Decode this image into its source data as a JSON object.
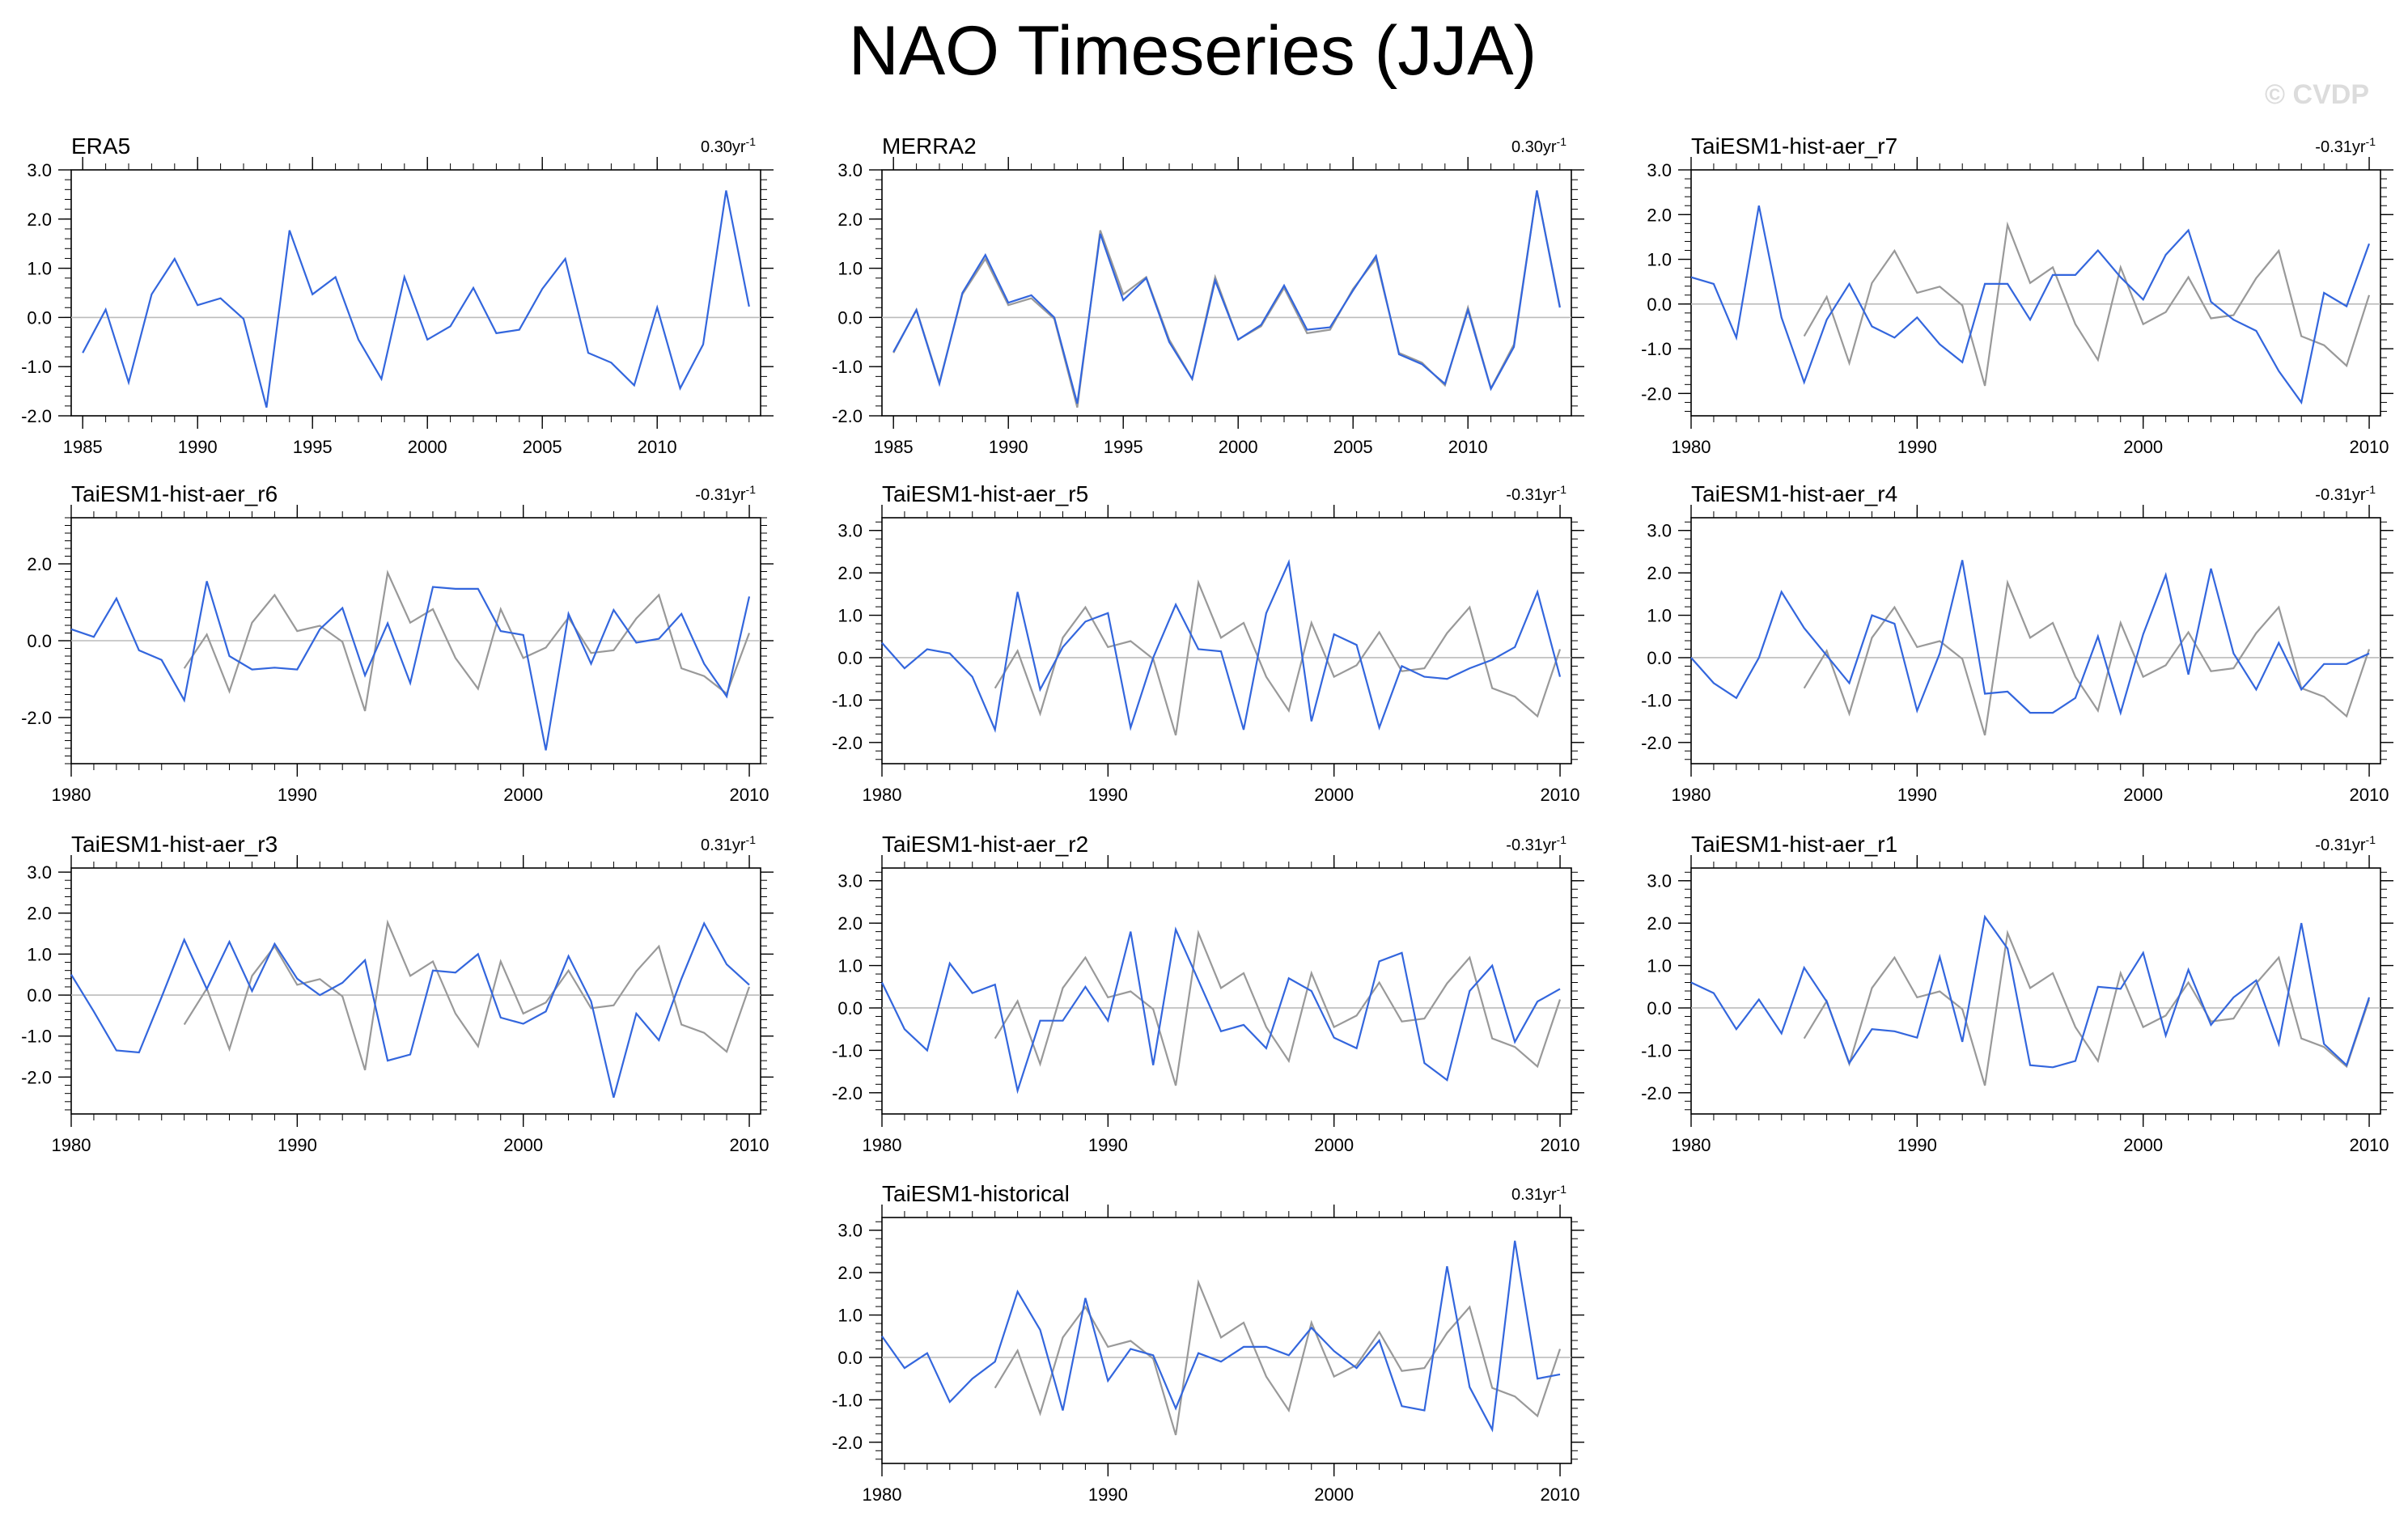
{
  "figure_title": "NAO Timeseries (JJA)",
  "watermark": "© CVDP",
  "obs_color": "#999999",
  "model_color": "#3366dd",
  "zero_line_color": "#bbbbbb",
  "chart_data": [
    {
      "type": "line",
      "title": "ERA5",
      "trend_label": "0.30yr",
      "xlim": [
        1984.5,
        2014.5
      ],
      "ylim": [
        -2.0,
        3.0
      ],
      "xticks": [
        1985,
        1990,
        1995,
        2000,
        2005,
        2010
      ],
      "yticks": [
        -2.0,
        -1.0,
        0.0,
        1.0,
        2.0,
        3.0
      ],
      "series": [
        {
          "name": "ERA5",
          "color_key": "model",
          "start": 1985,
          "values": [
            -0.72,
            0.16,
            -1.32,
            0.47,
            1.19,
            0.25,
            0.39,
            -0.03,
            -1.83,
            1.77,
            0.47,
            0.82,
            -0.45,
            -1.25,
            0.82,
            -0.45,
            -0.18,
            0.6,
            -0.32,
            -0.25,
            0.58,
            1.19,
            -0.72,
            -0.92,
            -1.38,
            0.2,
            -1.44,
            -0.55,
            2.58,
            0.22
          ]
        }
      ]
    },
    {
      "type": "line",
      "title": "MERRA2",
      "trend_label": "0.30yr",
      "xlim": [
        1984.5,
        2014.5
      ],
      "ylim": [
        -2.0,
        3.0
      ],
      "xticks": [
        1985,
        1990,
        1995,
        2000,
        2005,
        2010
      ],
      "yticks": [
        -2.0,
        -1.0,
        0.0,
        1.0,
        2.0,
        3.0
      ],
      "series": [
        {
          "name": "ERA5",
          "color_key": "obs",
          "start": 1985,
          "values": [
            -0.72,
            0.16,
            -1.32,
            0.47,
            1.19,
            0.25,
            0.39,
            -0.03,
            -1.83,
            1.77,
            0.47,
            0.82,
            -0.45,
            -1.25,
            0.82,
            -0.45,
            -0.18,
            0.6,
            -0.32,
            -0.25,
            0.58,
            1.19,
            -0.72,
            -0.92,
            -1.38,
            0.2,
            -1.44,
            -0.55,
            2.58,
            0.22
          ]
        },
        {
          "name": "MERRA2",
          "color_key": "model",
          "start": 1985,
          "values": [
            -0.7,
            0.15,
            -1.35,
            0.5,
            1.27,
            0.3,
            0.45,
            0.0,
            -1.75,
            1.7,
            0.35,
            0.8,
            -0.5,
            -1.25,
            0.75,
            -0.45,
            -0.15,
            0.65,
            -0.25,
            -0.2,
            0.55,
            1.25,
            -0.75,
            -0.95,
            -1.35,
            0.15,
            -1.45,
            -0.6,
            2.58,
            0.2
          ]
        }
      ]
    },
    {
      "type": "line",
      "title": "TaiESM1-hist-aer_r7",
      "trend_label": "-0.31yr",
      "xlim": [
        1980,
        2010.5
      ],
      "ylim": [
        -2.5,
        3.0
      ],
      "xticks": [
        1980,
        1990,
        2000,
        2010
      ],
      "yticks": [
        -2.0,
        -1.0,
        0.0,
        1.0,
        2.0,
        3.0
      ],
      "series": [
        {
          "name": "ERA5",
          "color_key": "obs",
          "start": 1985,
          "values": [
            -0.72,
            0.16,
            -1.32,
            0.47,
            1.19,
            0.25,
            0.39,
            -0.03,
            -1.83,
            1.77,
            0.47,
            0.82,
            -0.45,
            -1.25,
            0.82,
            -0.45,
            -0.18,
            0.6,
            -0.32,
            -0.25,
            0.58,
            1.19,
            -0.72,
            -0.92,
            -1.38,
            0.2,
            -1.44,
            -0.55,
            2.58,
            0.22
          ]
        },
        {
          "name": "TaiESM1-hist-aer_r7",
          "color_key": "model",
          "start": 1980,
          "values": [
            0.6,
            0.45,
            -0.75,
            2.2,
            -0.3,
            -1.75,
            -0.35,
            0.45,
            -0.5,
            -0.75,
            -0.3,
            -0.9,
            -1.3,
            0.45,
            0.45,
            -0.35,
            0.65,
            0.65,
            1.2,
            0.6,
            0.1,
            1.1,
            1.65,
            0.05,
            -0.35,
            -0.6,
            -1.5,
            -2.2,
            0.25,
            -0.05,
            1.35
          ]
        }
      ]
    },
    {
      "type": "line",
      "title": "TaiESM1-hist-aer_r6",
      "trend_label": "-0.31yr",
      "xlim": [
        1980,
        2010.5
      ],
      "ylim": [
        -3.2,
        3.2
      ],
      "xticks": [
        1980,
        1990,
        2000,
        2010
      ],
      "yticks": [
        -2.0,
        0.0,
        2.0
      ],
      "series": [
        {
          "name": "ERA5",
          "color_key": "obs",
          "start": 1985,
          "values": [
            -0.72,
            0.16,
            -1.32,
            0.47,
            1.19,
            0.25,
            0.39,
            -0.03,
            -1.83,
            1.77,
            0.47,
            0.82,
            -0.45,
            -1.25,
            0.82,
            -0.45,
            -0.18,
            0.6,
            -0.32,
            -0.25,
            0.58,
            1.19,
            -0.72,
            -0.92,
            -1.38,
            0.2,
            -1.44,
            -0.55,
            2.58,
            0.22
          ]
        },
        {
          "name": "TaiESM1-hist-aer_r6",
          "color_key": "model",
          "start": 1980,
          "values": [
            0.3,
            0.1,
            1.1,
            -0.25,
            -0.5,
            -1.55,
            1.55,
            -0.4,
            -0.75,
            -0.7,
            -0.75,
            0.3,
            0.85,
            -0.9,
            0.45,
            -1.1,
            1.4,
            1.35,
            1.35,
            0.25,
            0.15,
            -2.85,
            0.7,
            -0.6,
            0.8,
            -0.05,
            0.05,
            0.7,
            -0.6,
            -1.45,
            1.15
          ]
        }
      ]
    },
    {
      "type": "line",
      "title": "TaiESM1-hist-aer_r5",
      "trend_label": "-0.31yr",
      "xlim": [
        1980,
        2010.5
      ],
      "ylim": [
        -2.5,
        3.3
      ],
      "xticks": [
        1980,
        1990,
        2000,
        2010
      ],
      "yticks": [
        -2.0,
        -1.0,
        0.0,
        1.0,
        2.0,
        3.0
      ],
      "series": [
        {
          "name": "ERA5",
          "color_key": "obs",
          "start": 1985,
          "values": [
            -0.72,
            0.16,
            -1.32,
            0.47,
            1.19,
            0.25,
            0.39,
            -0.03,
            -1.83,
            1.77,
            0.47,
            0.82,
            -0.45,
            -1.25,
            0.82,
            -0.45,
            -0.18,
            0.6,
            -0.32,
            -0.25,
            0.58,
            1.19,
            -0.72,
            -0.92,
            -1.38,
            0.2,
            -1.44,
            -0.55,
            2.58,
            0.22
          ]
        },
        {
          "name": "TaiESM1-hist-aer_r5",
          "color_key": "model",
          "start": 1980,
          "values": [
            0.35,
            -0.25,
            0.2,
            0.1,
            -0.45,
            -1.7,
            1.55,
            -0.75,
            0.25,
            0.85,
            1.05,
            -1.65,
            0.0,
            1.25,
            0.2,
            0.15,
            -1.7,
            1.05,
            2.25,
            -1.5,
            0.55,
            0.3,
            -1.65,
            -0.2,
            -0.45,
            -0.5,
            -0.25,
            -0.05,
            0.25,
            1.55,
            -0.45
          ]
        }
      ]
    },
    {
      "type": "line",
      "title": "TaiESM1-hist-aer_r4",
      "trend_label": "-0.31yr",
      "xlim": [
        1980,
        2010.5
      ],
      "ylim": [
        -2.5,
        3.3
      ],
      "xticks": [
        1980,
        1990,
        2000,
        2010
      ],
      "yticks": [
        -2.0,
        -1.0,
        0.0,
        1.0,
        2.0,
        3.0
      ],
      "series": [
        {
          "name": "ERA5",
          "color_key": "obs",
          "start": 1985,
          "values": [
            -0.72,
            0.16,
            -1.32,
            0.47,
            1.19,
            0.25,
            0.39,
            -0.03,
            -1.83,
            1.77,
            0.47,
            0.82,
            -0.45,
            -1.25,
            0.82,
            -0.45,
            -0.18,
            0.6,
            -0.32,
            -0.25,
            0.58,
            1.19,
            -0.72,
            -0.92,
            -1.38,
            0.2,
            -1.44,
            -0.55,
            2.58,
            0.22
          ]
        },
        {
          "name": "TaiESM1-hist-aer_r4",
          "color_key": "model",
          "start": 1980,
          "values": [
            0.0,
            -0.6,
            -0.95,
            0.0,
            1.55,
            0.7,
            0.05,
            -0.6,
            1.0,
            0.8,
            -1.25,
            0.1,
            2.3,
            -0.85,
            -0.8,
            -1.3,
            -1.3,
            -0.95,
            0.5,
            -1.3,
            0.55,
            1.95,
            -0.4,
            2.1,
            0.1,
            -0.75,
            0.35,
            -0.75,
            -0.15,
            -0.15,
            0.1
          ]
        }
      ]
    },
    {
      "type": "line",
      "title": "TaiESM1-hist-aer_r3",
      "trend_label": "0.31yr",
      "xlim": [
        1980,
        2010.5
      ],
      "ylim": [
        -2.9,
        3.1
      ],
      "xticks": [
        1980,
        1990,
        2000,
        2010
      ],
      "yticks": [
        -2.0,
        -1.0,
        0.0,
        1.0,
        2.0,
        3.0
      ],
      "series": [
        {
          "name": "ERA5",
          "color_key": "obs",
          "start": 1985,
          "values": [
            -0.72,
            0.16,
            -1.32,
            0.47,
            1.19,
            0.25,
            0.39,
            -0.03,
            -1.83,
            1.77,
            0.47,
            0.82,
            -0.45,
            -1.25,
            0.82,
            -0.45,
            -0.18,
            0.6,
            -0.32,
            -0.25,
            0.58,
            1.19,
            -0.72,
            -0.92,
            -1.38,
            0.2,
            -1.44,
            -0.55,
            2.58,
            0.22
          ]
        },
        {
          "name": "TaiESM1-hist-aer_r3",
          "color_key": "model",
          "start": 1980,
          "values": [
            0.5,
            -0.4,
            -1.35,
            -1.4,
            -0.05,
            1.35,
            0.15,
            1.3,
            0.1,
            1.25,
            0.4,
            0.0,
            0.3,
            0.85,
            -1.6,
            -1.45,
            0.6,
            0.55,
            1.0,
            -0.55,
            -0.7,
            -0.4,
            0.95,
            -0.15,
            -2.5,
            -0.45,
            -1.1,
            0.4,
            1.75,
            0.75,
            0.25
          ]
        }
      ]
    },
    {
      "type": "line",
      "title": "TaiESM1-hist-aer_r2",
      "trend_label": "-0.31yr",
      "xlim": [
        1980,
        2010.5
      ],
      "ylim": [
        -2.5,
        3.3
      ],
      "xticks": [
        1980,
        1990,
        2000,
        2010
      ],
      "yticks": [
        -2.0,
        -1.0,
        0.0,
        1.0,
        2.0,
        3.0
      ],
      "series": [
        {
          "name": "ERA5",
          "color_key": "obs",
          "start": 1985,
          "values": [
            -0.72,
            0.16,
            -1.32,
            0.47,
            1.19,
            0.25,
            0.39,
            -0.03,
            -1.83,
            1.77,
            0.47,
            0.82,
            -0.45,
            -1.25,
            0.82,
            -0.45,
            -0.18,
            0.6,
            -0.32,
            -0.25,
            0.58,
            1.19,
            -0.72,
            -0.92,
            -1.38,
            0.2,
            -1.44,
            -0.55,
            2.58,
            0.22
          ]
        },
        {
          "name": "TaiESM1-hist-aer_r2",
          "color_key": "model",
          "start": 1980,
          "values": [
            0.6,
            -0.5,
            -1.0,
            1.05,
            0.35,
            0.55,
            -1.95,
            -0.3,
            -0.3,
            0.5,
            -0.3,
            1.8,
            -1.35,
            1.85,
            0.65,
            -0.55,
            -0.4,
            -0.95,
            0.7,
            0.4,
            -0.7,
            -0.95,
            1.1,
            1.3,
            -1.3,
            -1.7,
            0.4,
            1.0,
            -0.8,
            0.15,
            0.45
          ]
        }
      ]
    },
    {
      "type": "line",
      "title": "TaiESM1-hist-aer_r1",
      "trend_label": "-0.31yr",
      "xlim": [
        1980,
        2010.5
      ],
      "ylim": [
        -2.5,
        3.3
      ],
      "xticks": [
        1980,
        1990,
        2000,
        2010
      ],
      "yticks": [
        -2.0,
        -1.0,
        0.0,
        1.0,
        2.0,
        3.0
      ],
      "series": [
        {
          "name": "ERA5",
          "color_key": "obs",
          "start": 1985,
          "values": [
            -0.72,
            0.16,
            -1.32,
            0.47,
            1.19,
            0.25,
            0.39,
            -0.03,
            -1.83,
            1.77,
            0.47,
            0.82,
            -0.45,
            -1.25,
            0.82,
            -0.45,
            -0.18,
            0.6,
            -0.32,
            -0.25,
            0.58,
            1.19,
            -0.72,
            -0.92,
            -1.38,
            0.2,
            -1.44,
            -0.55,
            2.58,
            0.22
          ]
        },
        {
          "name": "TaiESM1-hist-aer_r1",
          "color_key": "model",
          "start": 1980,
          "values": [
            0.6,
            0.35,
            -0.5,
            0.2,
            -0.6,
            0.95,
            0.15,
            -1.3,
            -0.5,
            -0.55,
            -0.7,
            1.2,
            -0.8,
            2.15,
            1.4,
            -1.35,
            -1.4,
            -1.25,
            0.5,
            0.45,
            1.3,
            -0.65,
            0.9,
            -0.4,
            0.25,
            0.65,
            -0.85,
            2.0,
            -0.85,
            -1.35,
            0.25
          ]
        }
      ]
    },
    {
      "type": "line",
      "title": "TaiESM1-historical",
      "trend_label": "0.31yr",
      "xlim": [
        1980,
        2010.5
      ],
      "ylim": [
        -2.5,
        3.3
      ],
      "xticks": [
        1980,
        1990,
        2000,
        2010
      ],
      "yticks": [
        -2.0,
        -1.0,
        0.0,
        1.0,
        2.0,
        3.0
      ],
      "series": [
        {
          "name": "ERA5",
          "color_key": "obs",
          "start": 1985,
          "values": [
            -0.72,
            0.16,
            -1.32,
            0.47,
            1.19,
            0.25,
            0.39,
            -0.03,
            -1.83,
            1.77,
            0.47,
            0.82,
            -0.45,
            -1.25,
            0.82,
            -0.45,
            -0.18,
            0.6,
            -0.32,
            -0.25,
            0.58,
            1.19,
            -0.72,
            -0.92,
            -1.38,
            0.2,
            -1.44,
            -0.55,
            2.58,
            0.22
          ]
        },
        {
          "name": "TaiESM1-historical",
          "color_key": "model",
          "start": 1980,
          "values": [
            0.5,
            -0.25,
            0.1,
            -1.05,
            -0.5,
            -0.1,
            1.55,
            0.65,
            -1.25,
            1.4,
            -0.55,
            0.2,
            0.05,
            -1.2,
            0.1,
            -0.1,
            0.25,
            0.25,
            0.05,
            0.7,
            0.15,
            -0.25,
            0.4,
            -1.15,
            -1.25,
            2.15,
            -0.7,
            -1.7,
            2.75,
            -0.5,
            -0.4
          ]
        }
      ]
    }
  ]
}
